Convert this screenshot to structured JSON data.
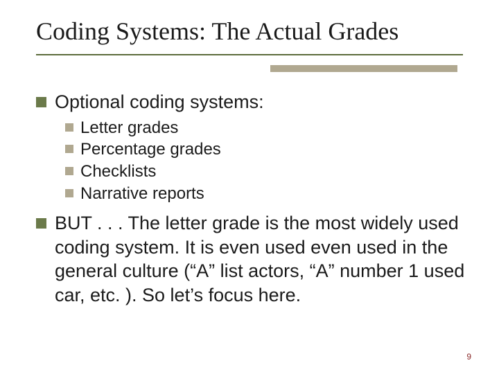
{
  "colors": {
    "background": "#ffffff",
    "title_text": "#1a1a1a",
    "body_text": "#1a1a1a",
    "underline": "#5a6a3a",
    "accent_bar": "#b0a890",
    "bullet_lvl1": "#6b7a4a",
    "bullet_lvl2": "#b0a890",
    "page_number": "#8a2a2a"
  },
  "typography": {
    "title_font": "Times New Roman",
    "title_size_pt": 36,
    "body_font": "Arial",
    "lvl1_size_pt": 27,
    "lvl2_size_pt": 24,
    "page_num_size_pt": 12
  },
  "title": "Coding Systems: The Actual Grades",
  "bullets": {
    "item0": {
      "text": "Optional coding systems:",
      "sub": {
        "s0": "Letter grades",
        "s1": "Percentage grades",
        "s2": "Checklists",
        "s3": "Narrative reports"
      }
    },
    "item1": {
      "text": "BUT . . . The letter grade is the most widely used coding system.  It is even used even used in the general culture (“A” list actors, “A” number 1 used car, etc. ).  So let’s focus here."
    }
  },
  "page_number": "9"
}
